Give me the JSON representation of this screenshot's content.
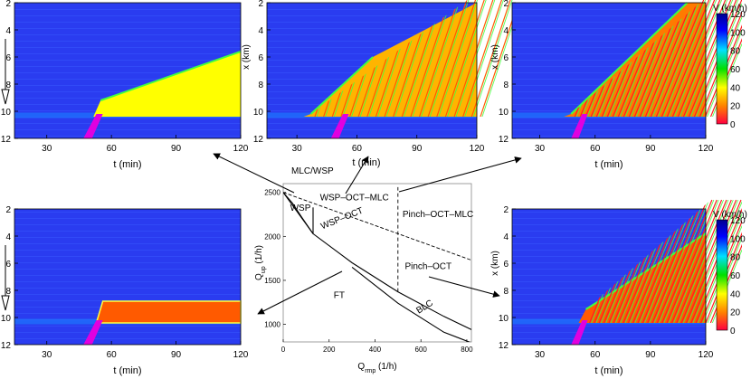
{
  "chart_data": [
    {
      "id": "panel-top-left",
      "type": "heatmap",
      "xlabel": "t (min)",
      "ylabel": "x (km)",
      "xticks": [
        30,
        60,
        90,
        120
      ],
      "yticks": [
        2,
        4,
        6,
        8,
        10,
        12
      ],
      "xlim": [
        15,
        120
      ],
      "ylim": [
        2,
        12
      ],
      "pattern": "wedge-uniform",
      "front_start": [
        55,
        9.2
      ],
      "front_end": [
        120,
        5.6
      ],
      "queue_color": "#ffff00"
    },
    {
      "id": "panel-top-mid",
      "type": "heatmap",
      "xlabel": "t (min)",
      "ylabel": "",
      "xticks": [
        30,
        60,
        90,
        120
      ],
      "yticks": [
        2,
        4,
        6,
        8,
        10,
        12
      ],
      "xlim": [
        15,
        120
      ],
      "ylim": [
        2,
        12
      ],
      "pattern": "wedge-oscillating",
      "front_start": [
        37,
        10.2
      ],
      "front_end": [
        68,
        6.0
      ],
      "queue_color": "#ffb400"
    },
    {
      "id": "panel-top-right",
      "type": "heatmap",
      "xlabel": "t (min)",
      "ylabel": "x (km)",
      "xticks": [
        30,
        60,
        90,
        120
      ],
      "yticks": [
        2,
        4,
        6,
        8,
        10,
        12
      ],
      "xlim": [
        15,
        120
      ],
      "ylim": [
        2,
        12
      ],
      "pattern": "wedge-oscillating-strong",
      "front_start": [
        47,
        10.2
      ],
      "front_end": [
        110,
        2.0
      ],
      "queue_color": "#ff7a00",
      "colorbar": {
        "label": "V (km/h)",
        "ticks": [
          120,
          100,
          80,
          60,
          40,
          20,
          0
        ]
      }
    },
    {
      "id": "panel-bottom-left",
      "type": "heatmap",
      "xlabel": "t (min)",
      "ylabel": "x (km)",
      "xticks": [
        30,
        60,
        90,
        120
      ],
      "yticks": [
        2,
        4,
        6,
        8,
        10,
        12
      ],
      "xlim": [
        15,
        120
      ],
      "ylim": [
        2,
        12
      ],
      "pattern": "pinned-band",
      "band": [
        8.8,
        10.4
      ],
      "queue_color": "#ff5a00"
    },
    {
      "id": "panel-bottom-right",
      "type": "heatmap",
      "xlabel": "t (min)",
      "ylabel": "x (km)",
      "xticks": [
        30,
        60,
        90,
        120
      ],
      "yticks": [
        2,
        4,
        6,
        8,
        10,
        12
      ],
      "xlim": [
        15,
        120
      ],
      "ylim": [
        2,
        12
      ],
      "pattern": "wedge-oscillating-strong",
      "front_start": [
        55,
        9.4
      ],
      "front_end": [
        120,
        3.8
      ],
      "queue_color": "#ff5a00",
      "colorbar": {
        "label": "V (km/h)",
        "ticks": [
          120,
          100,
          80,
          60,
          40,
          20,
          0
        ]
      }
    },
    {
      "id": "phase-diagram",
      "type": "line",
      "xlabel": "Q",
      "xlabel_sub": "rmp",
      "xlabel_unit": " (1/h)",
      "ylabel": "Q",
      "ylabel_sub": "up",
      "ylabel_unit": " (1/h)",
      "xticks": [
        0,
        200,
        400,
        600,
        800
      ],
      "yticks": [
        1000,
        1500,
        2000,
        2500
      ],
      "xlim": [
        0,
        820
      ],
      "ylim": [
        800,
        2600
      ],
      "series": [
        {
          "style": "solid",
          "x": [
            0,
            130,
            300,
            500,
            700,
            820
          ],
          "y": [
            2500,
            2030,
            1700,
            1370,
            1090,
            940
          ]
        },
        {
          "style": "solid",
          "x": [
            300,
            500,
            700,
            820
          ],
          "y": [
            1650,
            1240,
            910,
            790
          ]
        },
        {
          "style": "solid",
          "x": [
            0,
            40,
            80,
            130
          ],
          "y": [
            2500,
            2380,
            2220,
            2030
          ]
        },
        {
          "style": "solid",
          "x": [
            130,
            130
          ],
          "y": [
            2030,
            2330
          ]
        },
        {
          "style": "dashed",
          "x": [
            0,
            820
          ],
          "y": [
            2500,
            1730
          ]
        },
        {
          "style": "dashed",
          "x": [
            500,
            500
          ],
          "y": [
            1370,
            2560
          ]
        }
      ],
      "annotations": [
        {
          "text": "MLC/WSP",
          "x": 60,
          "y": 2590,
          "rotate": 0
        },
        {
          "text": "WSP",
          "x": 30,
          "y": 2290,
          "rotate": 0
        },
        {
          "text": "WSP–OCT–MLC",
          "x": 160,
          "y": 2410,
          "rotate": 0
        },
        {
          "text": "WSP–OCT",
          "x": 170,
          "y": 2080,
          "rotate": -22
        },
        {
          "text": "Pinch–OCT–MLC",
          "x": 520,
          "y": 2220,
          "rotate": 0
        },
        {
          "text": "Pinch–OCT",
          "x": 530,
          "y": 1630,
          "rotate": 0
        },
        {
          "text": "FT",
          "x": 220,
          "y": 1300,
          "rotate": 0
        },
        {
          "text": "BLC",
          "x": 590,
          "y": 1120,
          "rotate": -32
        }
      ]
    }
  ]
}
